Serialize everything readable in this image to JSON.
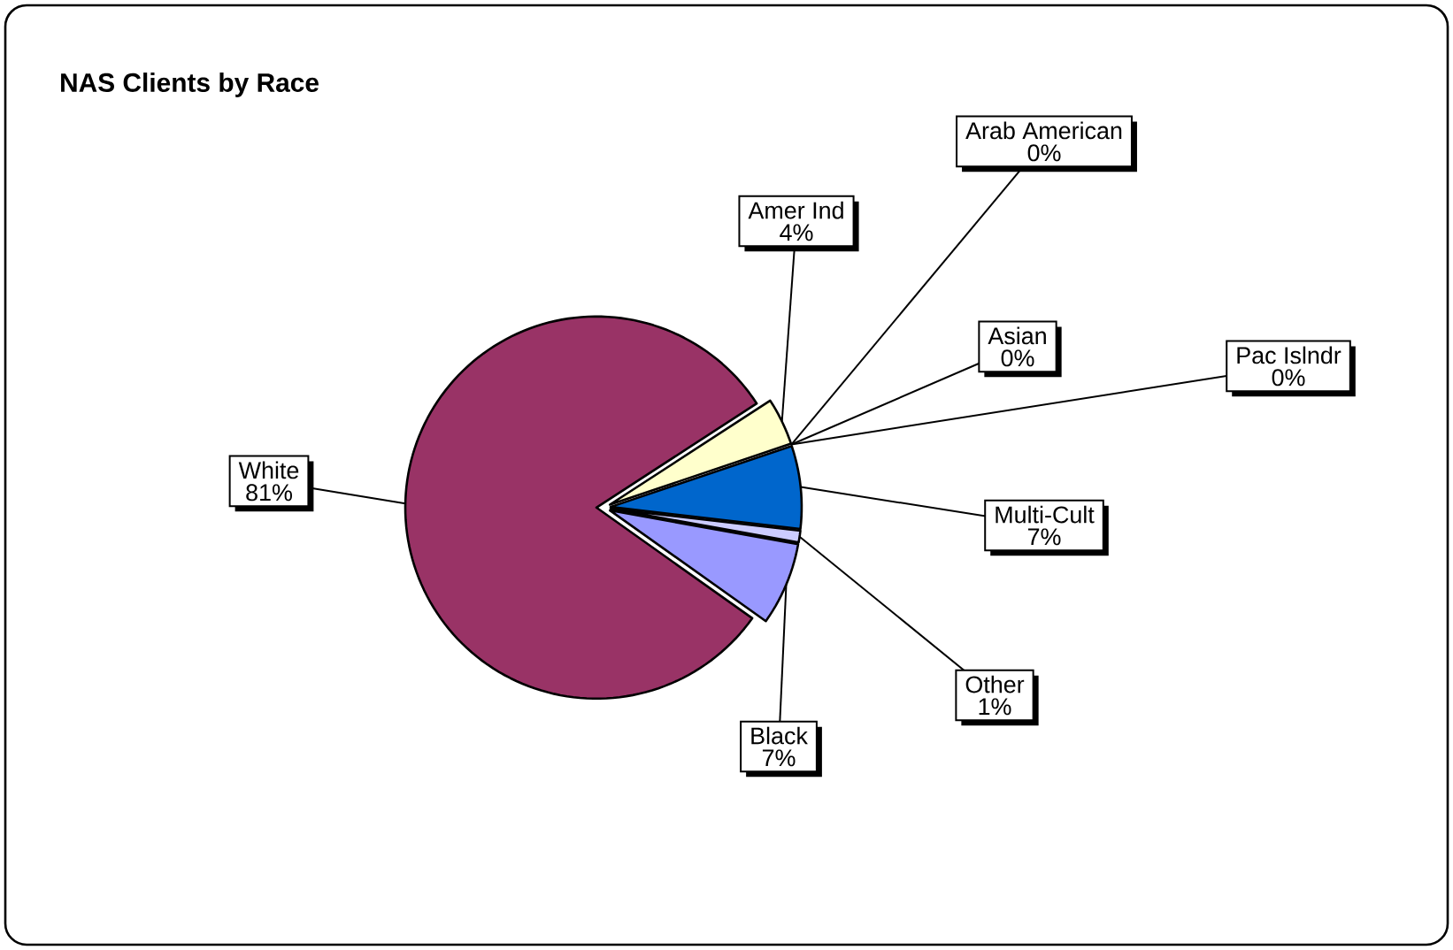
{
  "chart_data": {
    "type": "pie",
    "title": "NAS Clients by Race",
    "categories": [
      "Amer Ind",
      "Arab American",
      "Asian",
      "Pac Islndr",
      "Multi-Cult",
      "Other",
      "Black",
      "White"
    ],
    "values": [
      4,
      0,
      0,
      0,
      7,
      1,
      7,
      81
    ],
    "value_labels": [
      "4%",
      "0%",
      "0%",
      "0%",
      "7%",
      "1%",
      "7%",
      "81%"
    ],
    "colors": [
      "#ffffcc",
      "#ff8080",
      "#00ccff",
      "#ccffcc",
      "#0066cc",
      "#ccccff",
      "#9999ff",
      "#993366"
    ]
  }
}
